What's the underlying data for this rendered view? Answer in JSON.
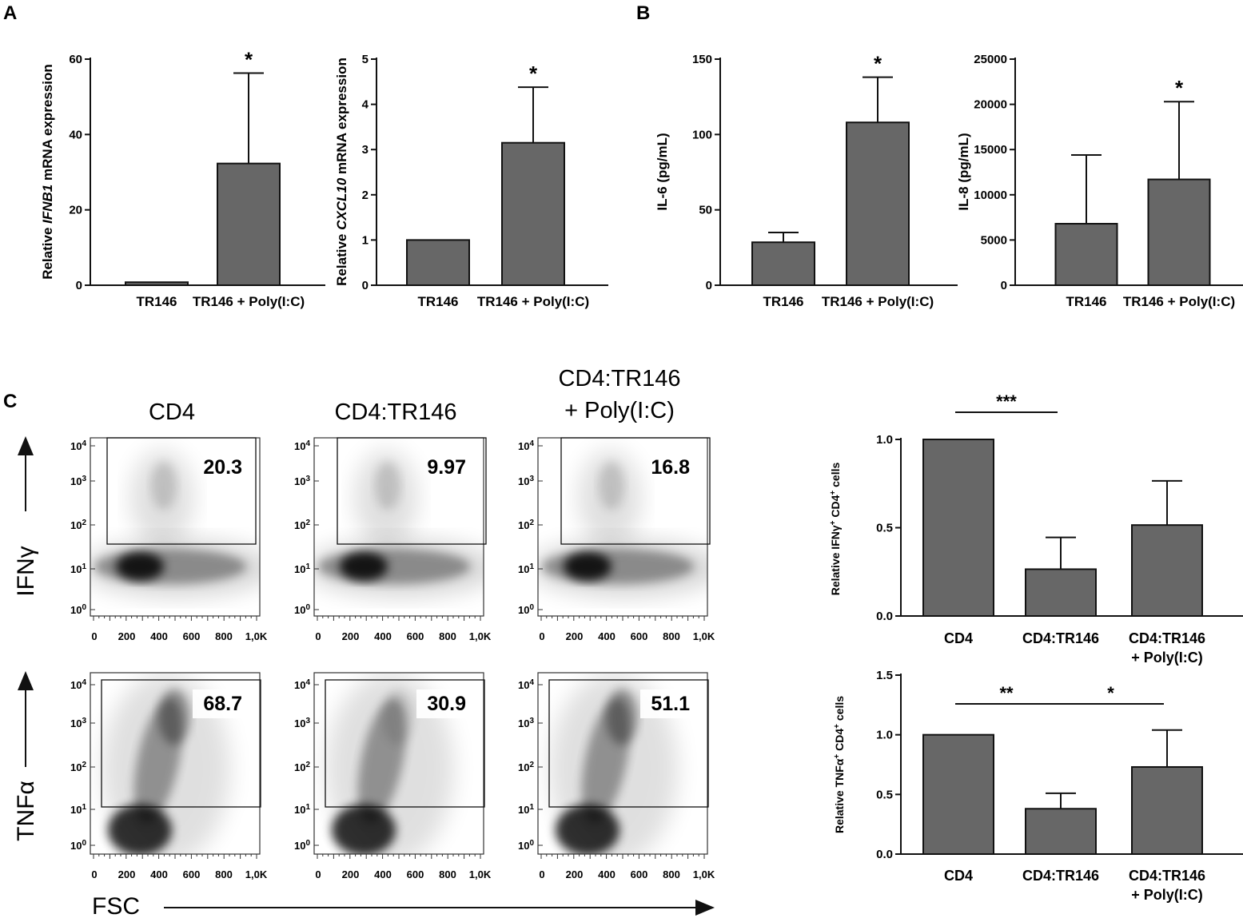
{
  "colors": {
    "bar": "#676767",
    "bar_dark": "#6b6b6b",
    "axis": "#111111",
    "density": "#000000"
  },
  "panel_labels": [
    "A",
    "B",
    "C"
  ],
  "chart_data": [
    {
      "id": "ifnb1",
      "type": "bar",
      "ylabel_pre": "Relative ",
      "ylabel_italic": "IFNB1",
      "ylabel_post": " mRNA expression",
      "categories": [
        "TR146",
        "TR146 + Poly(I:C)"
      ],
      "values": [
        0.8,
        32.3
      ],
      "errors": [
        0,
        24.0
      ],
      "ylim": [
        0,
        60
      ],
      "yticks": [
        0,
        20,
        40,
        60
      ],
      "ytick_labels": [
        "0",
        "20",
        "40",
        "60"
      ],
      "significance": [
        {
          "bar": 1,
          "label": "*"
        }
      ]
    },
    {
      "id": "cxcl10",
      "type": "bar",
      "ylabel_pre": "Relative ",
      "ylabel_italic": "CXCL10",
      "ylabel_post": " mRNA expression",
      "categories": [
        "TR146",
        "TR146 + Poly(I:C)"
      ],
      "values": [
        1.0,
        3.15
      ],
      "errors": [
        0,
        1.23
      ],
      "ylim": [
        0,
        5
      ],
      "yticks": [
        0,
        1,
        2,
        3,
        4,
        5
      ],
      "ytick_labels": [
        "0",
        "1",
        "2",
        "3",
        "4",
        "5"
      ],
      "significance": [
        {
          "bar": 1,
          "label": "*"
        }
      ]
    },
    {
      "id": "il6",
      "type": "bar",
      "ylabel": "IL-6 (pg/mL)",
      "categories": [
        "TR146",
        "TR146 + Poly(I:C)"
      ],
      "values": [
        28.5,
        108
      ],
      "errors": [
        6.5,
        30
      ],
      "ylim": [
        0,
        150
      ],
      "yticks": [
        0,
        50,
        100,
        150
      ],
      "ytick_labels": [
        "0",
        "50",
        "100",
        "150"
      ],
      "significance": [
        {
          "bar": 1,
          "label": "*"
        }
      ]
    },
    {
      "id": "il8",
      "type": "bar",
      "ylabel": "IL-8 (pg/mL)",
      "categories": [
        "TR146",
        "TR146 + Poly(I:C)"
      ],
      "values": [
        6800,
        11700
      ],
      "errors": [
        7600,
        8600
      ],
      "ylim": [
        0,
        25000
      ],
      "yticks": [
        0,
        5000,
        10000,
        15000,
        20000,
        25000
      ],
      "ytick_labels": [
        "0",
        "5000",
        "10000",
        "15000",
        "20000",
        "25000"
      ],
      "significance": [
        {
          "bar": 1,
          "label": "*"
        }
      ]
    },
    {
      "id": "ifng_rel",
      "type": "bar",
      "ylabel_pre": "Relative IFNγ",
      "ylabel_sup1": "+",
      "ylabel_mid": " CD4",
      "ylabel_sup2": "+",
      "ylabel_post": " cells",
      "categories": [
        "CD4",
        "CD4:TR146",
        "CD4:TR146"
      ],
      "category_line2": [
        "",
        "",
        "+ Poly(I:C)"
      ],
      "values": [
        1.0,
        0.265,
        0.515
      ],
      "errors": [
        0,
        0.18,
        0.25
      ],
      "ylim": [
        0,
        1.0
      ],
      "yticks": [
        0,
        0.5,
        1.0
      ],
      "ytick_labels": [
        "0.0",
        "0.5",
        "1.0"
      ],
      "brackets": [
        {
          "from": 0,
          "to": 1,
          "label": "***"
        }
      ]
    },
    {
      "id": "tnfa_rel",
      "type": "bar",
      "ylabel_pre": "Relative TNFα",
      "ylabel_sup1": "+",
      "ylabel_mid": " CD4",
      "ylabel_sup2": "+",
      "ylabel_post": " cells",
      "categories": [
        "CD4",
        "CD4:TR146",
        "CD4:TR146"
      ],
      "category_line2": [
        "",
        "",
        "+ Poly(I:C)"
      ],
      "values": [
        1.0,
        0.38,
        0.73
      ],
      "errors": [
        0,
        0.13,
        0.31
      ],
      "ylim": [
        0,
        1.5
      ],
      "yticks": [
        0,
        0.5,
        1.0,
        1.5
      ],
      "ytick_labels": [
        "0.0",
        "0.5",
        "1.0",
        "1.5"
      ],
      "brackets": [
        {
          "from": 0,
          "to": 1,
          "label": "**"
        },
        {
          "from": 1,
          "to": 2,
          "label": "*"
        }
      ]
    }
  ],
  "flow": {
    "columns": [
      "CD4",
      "CD4:TR146",
      "CD4:TR146"
    ],
    "column_line2": [
      "",
      "",
      "+ Poly(I:C)"
    ],
    "rows": [
      {
        "marker": "IFNγ",
        "gates": [
          "20.3",
          "9.97",
          "16.8"
        ]
      },
      {
        "marker": "TNFα",
        "gates": [
          "68.7",
          "30.9",
          "51.1"
        ]
      }
    ],
    "x_ticks": [
      "0",
      "200",
      "400",
      "600",
      "800",
      "1,0K"
    ],
    "y_ticks": [
      "0",
      "1",
      "2",
      "3",
      "4"
    ],
    "x_axis_label": "FSC"
  }
}
